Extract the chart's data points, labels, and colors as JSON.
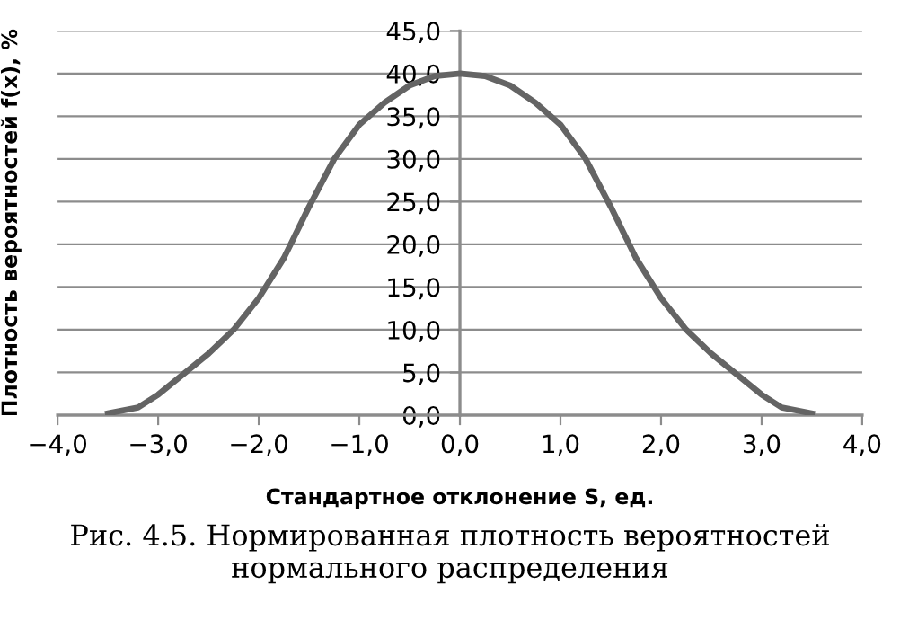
{
  "chart_data": {
    "type": "line",
    "xlabel": "Стандартное отклонение S, ед.",
    "ylabel": "Плотность вероятностей f(x), %",
    "annotations": [
      "Рис. 4.5. Нормированная плотность вероятностей\nнормального распределения"
    ],
    "x": [
      -3.5,
      -3.2,
      -3.0,
      -2.75,
      -2.5,
      -2.25,
      -2.0,
      -1.75,
      -1.5,
      -1.25,
      -1.0,
      -0.75,
      -0.5,
      -0.25,
      0,
      0.25,
      0.5,
      0.75,
      1.0,
      1.25,
      1.5,
      1.75,
      2.0,
      2.25,
      2.5,
      2.75,
      3.0,
      3.2,
      3.5
    ],
    "series": [
      {
        "color": "#646464",
        "values": [
          0.2,
          0.9,
          2.4,
          4.8,
          7.2,
          10.0,
          13.7,
          18.4,
          24.4,
          30.0,
          34.0,
          36.6,
          38.6,
          39.7,
          40.0,
          39.7,
          38.6,
          36.6,
          34.0,
          30.0,
          24.4,
          18.4,
          13.7,
          10.0,
          7.2,
          4.8,
          2.4,
          0.9,
          0.2
        ]
      }
    ],
    "xlim": [
      -4,
      4
    ],
    "ylim": [
      0,
      45
    ],
    "xticks": [
      {
        "value": -4,
        "label": "−4,0"
      },
      {
        "value": -3,
        "label": "−3,0"
      },
      {
        "value": -2,
        "label": "−2,0"
      },
      {
        "value": -1,
        "label": "−1,0"
      },
      {
        "value": 0,
        "label": "0,0"
      },
      {
        "value": 1,
        "label": "1,0"
      },
      {
        "value": 2,
        "label": "2,0"
      },
      {
        "value": 3,
        "label": "3,0"
      },
      {
        "value": 4,
        "label": "4,0"
      }
    ],
    "yticks": [
      {
        "value": 0,
        "label": "0,0"
      },
      {
        "value": 5,
        "label": "5,0"
      },
      {
        "value": 10,
        "label": "10,0"
      },
      {
        "value": 15,
        "label": "15,0"
      },
      {
        "value": 20,
        "label": "20,0"
      },
      {
        "value": 25,
        "label": "25,0"
      },
      {
        "value": 30,
        "label": "30,0"
      },
      {
        "value": 35,
        "label": "35,0"
      },
      {
        "value": 40,
        "label": "40,0"
      },
      {
        "value": 45,
        "label": "45,0"
      }
    ],
    "grid": "y",
    "legend": false,
    "marker": "none",
    "line_style": "solid"
  }
}
